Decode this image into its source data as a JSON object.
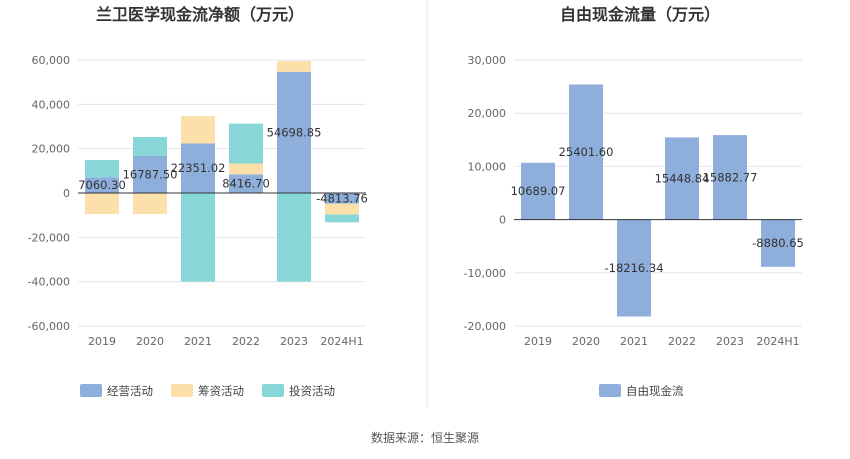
{
  "colors": {
    "operating": "#8eaedc",
    "financing": "#fddfaa",
    "investing": "#88d7d8",
    "freecash": "#8eaedc",
    "grid": "#e6e6e6",
    "axis": "#333333",
    "divider": "#e8e8e8"
  },
  "source_text": "数据来源：恒生聚源",
  "chart_data": [
    {
      "type": "bar",
      "stacked": true,
      "title": "兰卫医学现金流净额（万元）",
      "categories": [
        "2019",
        "2020",
        "2021",
        "2022",
        "2023",
        "2024H1"
      ],
      "ylim": [
        -60000,
        60000
      ],
      "yticks": [
        60000,
        40000,
        20000,
        0,
        -20000,
        -40000,
        -60000
      ],
      "ytick_labels": [
        "60,000",
        "40,000",
        "20,000",
        "0",
        "-20,000",
        "-40,000",
        "-60,000"
      ],
      "grid": true,
      "legend_position": "bottom",
      "series": [
        {
          "name": "经营活动",
          "color_key": "operating",
          "values": [
            7060.3,
            16787.5,
            22351.02,
            8416.7,
            54698.85,
            -4813.76
          ]
        },
        {
          "name": "筹资活动",
          "color_key": "financing",
          "values": [
            -9500,
            -9500,
            12300,
            4900,
            4800,
            -4900
          ]
        },
        {
          "name": "投资活动",
          "color_key": "investing",
          "values": [
            7800,
            8500,
            -40000,
            18000,
            -40000,
            -3500
          ]
        }
      ],
      "data_labels": [
        "7060.30",
        "16787.50",
        "22351.02",
        "8416.70",
        "54698.85",
        "-4813.76"
      ]
    },
    {
      "type": "bar",
      "title": "自由现金流量（万元）",
      "categories": [
        "2019",
        "2020",
        "2021",
        "2022",
        "2023",
        "2024H1"
      ],
      "ylim": [
        -20000,
        30000
      ],
      "yticks": [
        30000,
        20000,
        10000,
        0,
        -10000,
        -20000
      ],
      "ytick_labels": [
        "30,000",
        "20,000",
        "10,000",
        "0",
        "-10,000",
        "-20,000"
      ],
      "grid": true,
      "legend_position": "bottom",
      "series": [
        {
          "name": "自由现金流",
          "color_key": "freecash",
          "values": [
            10689.07,
            25401.6,
            -18216.34,
            15448.84,
            15882.77,
            -8880.65
          ]
        }
      ],
      "data_labels": [
        "10689.07",
        "25401.60",
        "-18216.34",
        "15448.84",
        "15882.77",
        "-8880.65"
      ]
    }
  ]
}
